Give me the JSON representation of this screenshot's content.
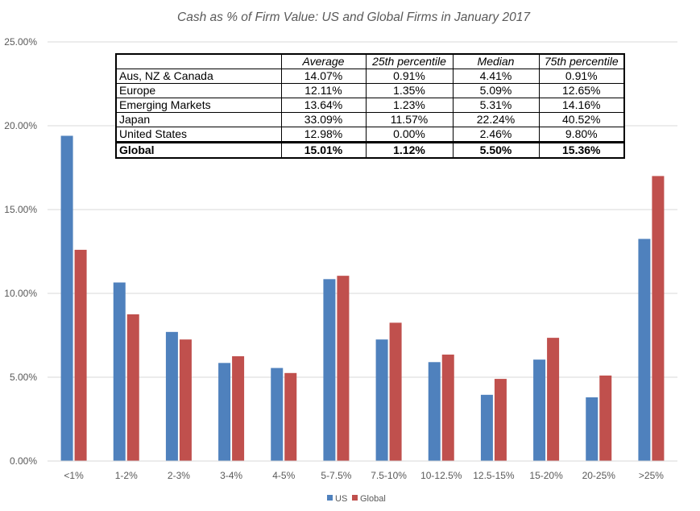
{
  "chart_data": {
    "type": "bar",
    "title": "Cash as % of Firm Value: US and Global Firms in January 2017",
    "xlabel": "",
    "ylabel": "",
    "categories": [
      "<1%",
      "1-2%",
      "2-3%",
      "3-4%",
      "4-5%",
      "5-7.5%",
      "7.5-10%",
      "10-12.5%",
      "12.5-15%",
      "15-20%",
      "20-25%",
      ">25%"
    ],
    "series": [
      {
        "name": "US",
        "color": "#4F81BD",
        "values": [
          19.4,
          10.65,
          7.7,
          5.85,
          5.55,
          10.85,
          7.25,
          5.9,
          3.95,
          6.05,
          3.8,
          13.25
        ]
      },
      {
        "name": "Global",
        "color": "#C0504D",
        "values": [
          12.6,
          8.75,
          7.25,
          6.25,
          5.25,
          11.05,
          8.25,
          6.35,
          4.9,
          7.35,
          5.1,
          17.0
        ]
      }
    ],
    "ylim": [
      0,
      25
    ],
    "yticks": [
      "0.00%",
      "5.00%",
      "10.00%",
      "15.00%",
      "20.00%",
      "25.00%"
    ],
    "grid": true,
    "legend": "bottom-center"
  },
  "table": {
    "headers": [
      "",
      "Average",
      "25th percentile",
      "Median",
      "75th percentile"
    ],
    "rows": [
      [
        "Aus, NZ & Canada",
        "14.07%",
        "0.91%",
        "4.41%",
        "0.91%"
      ],
      [
        "Europe",
        "12.11%",
        "1.35%",
        "5.09%",
        "12.65%"
      ],
      [
        "Emerging Markets",
        "13.64%",
        "1.23%",
        "5.31%",
        "14.16%"
      ],
      [
        "Japan",
        "33.09%",
        "11.57%",
        "22.24%",
        "40.52%"
      ],
      [
        "United States",
        "12.98%",
        "0.00%",
        "2.46%",
        "9.80%"
      ],
      [
        "Global",
        "15.01%",
        "1.12%",
        "5.50%",
        "15.36%"
      ]
    ]
  }
}
